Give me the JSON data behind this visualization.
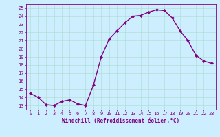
{
  "x": [
    0,
    1,
    2,
    3,
    4,
    5,
    6,
    7,
    8,
    9,
    10,
    11,
    12,
    13,
    14,
    15,
    16,
    17,
    18,
    19,
    20,
    21,
    22,
    23
  ],
  "y": [
    14.5,
    14.0,
    13.1,
    13.0,
    13.5,
    13.7,
    13.2,
    13.0,
    15.5,
    19.0,
    21.2,
    22.2,
    23.2,
    24.0,
    24.1,
    24.5,
    24.8,
    24.7,
    23.8,
    22.2,
    21.0,
    19.2,
    18.5,
    18.2
  ],
  "line_color": "#800080",
  "marker": "D",
  "markersize": 2.0,
  "linewidth": 1.0,
  "background_color": "#cceeff",
  "grid_color": "#aaddcc",
  "xlabel": "Windchill (Refroidissement éolien,°C)",
  "xlabel_fontsize": 5.5,
  "ylabel_ticks": [
    13,
    14,
    15,
    16,
    17,
    18,
    19,
    20,
    21,
    22,
    23,
    24,
    25
  ],
  "xticks": [
    0,
    1,
    2,
    3,
    4,
    5,
    6,
    7,
    8,
    9,
    10,
    11,
    12,
    13,
    14,
    15,
    16,
    17,
    18,
    19,
    20,
    21,
    22,
    23
  ],
  "xlim": [
    -0.5,
    23.5
  ],
  "ylim": [
    12.5,
    25.5
  ],
  "tick_fontsize": 5.0,
  "tick_color": "#800080",
  "axis_color": "#800080",
  "spine_color": "#800080"
}
